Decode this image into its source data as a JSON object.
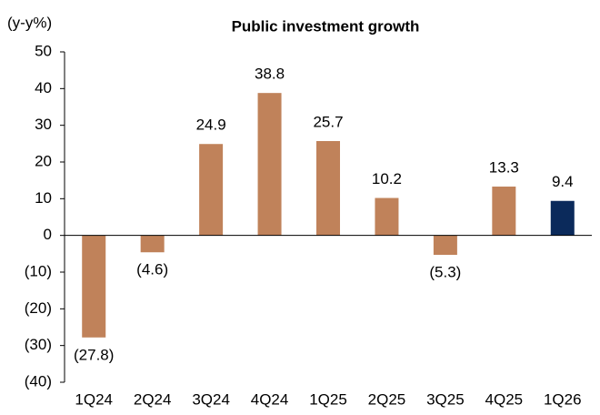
{
  "chart_data": {
    "type": "bar",
    "title": "Public investment growth",
    "y_label": "(y-y%)",
    "categories": [
      "1Q24",
      "2Q24",
      "3Q24",
      "4Q24",
      "1Q25",
      "2Q25",
      "3Q25",
      "4Q25",
      "1Q26"
    ],
    "values": [
      -27.8,
      -4.6,
      24.9,
      38.8,
      25.7,
      10.2,
      -5.3,
      13.3,
      9.4
    ],
    "value_labels": [
      "(27.8)",
      "(4.6)",
      "24.9",
      "38.8",
      "25.7",
      "10.2",
      "(5.3)",
      "13.3",
      "9.4"
    ],
    "colors": [
      "#c0825a",
      "#c0825a",
      "#c0825a",
      "#c0825a",
      "#c0825a",
      "#c0825a",
      "#c0825a",
      "#c0825a",
      "#0b2a5b"
    ],
    "ylim": [
      -40,
      50
    ],
    "yticks": [
      50,
      40,
      30,
      20,
      10,
      0,
      {
        "value": -10,
        "label": "(10)"
      },
      {
        "value": -20,
        "label": "(20)"
      },
      {
        "value": -30,
        "label": "(30)"
      },
      {
        "value": -40,
        "label": "(40)"
      }
    ],
    "grid": false
  }
}
